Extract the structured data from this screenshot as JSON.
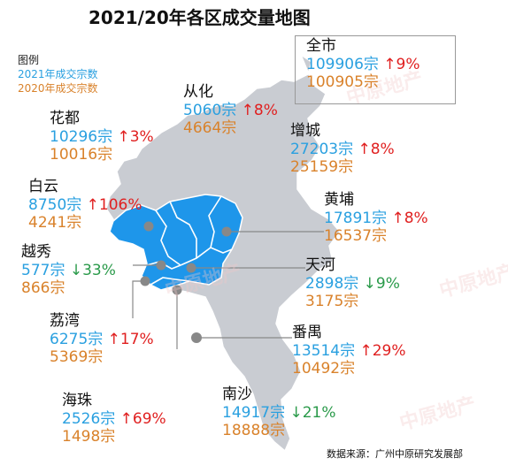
{
  "title": "2021/20年各区成交量地图",
  "legend": {
    "label": "图例",
    "current": "2021年成交宗数",
    "previous": "2020年成交宗数"
  },
  "colors": {
    "current": "#2aa0e0",
    "previous": "#d9822b",
    "up": "#e02020",
    "down": "#2a9a4a",
    "land_light": "#c9ccd2",
    "land_core": "#1e96ea",
    "marker": "#888888"
  },
  "districts": [
    {
      "name": "全市",
      "y2021": "109906宗",
      "change": "↑9%",
      "dir": "up",
      "y2020": "100905宗"
    },
    {
      "name": "从化",
      "y2021": "5060宗",
      "change": "↑8%",
      "dir": "up",
      "y2020": "4664宗"
    },
    {
      "name": "花都",
      "y2021": "10296宗",
      "change": "↑3%",
      "dir": "up",
      "y2020": "10016宗"
    },
    {
      "name": "增城",
      "y2021": "27203宗",
      "change": "↑8%",
      "dir": "up",
      "y2020": "25159宗"
    },
    {
      "name": "白云",
      "y2021": "8750宗",
      "change": "↑106%",
      "dir": "up",
      "y2020": "4241宗"
    },
    {
      "name": "黄埔",
      "y2021": "17891宗",
      "change": "↑8%",
      "dir": "up",
      "y2020": "16537宗"
    },
    {
      "name": "越秀",
      "y2021": "577宗",
      "change": "↓33%",
      "dir": "down",
      "y2020": "866宗"
    },
    {
      "name": "天河",
      "y2021": "2898宗",
      "change": "↓9%",
      "dir": "down",
      "y2020": "3175宗"
    },
    {
      "name": "荔湾",
      "y2021": "6275宗",
      "change": "↑17%",
      "dir": "up",
      "y2020": "5369宗"
    },
    {
      "name": "番禺",
      "y2021": "13514宗",
      "change": "↑29%",
      "dir": "up",
      "y2020": "10492宗"
    },
    {
      "name": "海珠",
      "y2021": "2526宗",
      "change": "↑69%",
      "dir": "up",
      "y2020": "1498宗"
    },
    {
      "name": "南沙",
      "y2021": "14917宗",
      "change": "↓21%",
      "dir": "down",
      "y2020": "18888宗"
    }
  ],
  "source": "数据来源：广州中原研究发展部",
  "watermark": "中原地产"
}
